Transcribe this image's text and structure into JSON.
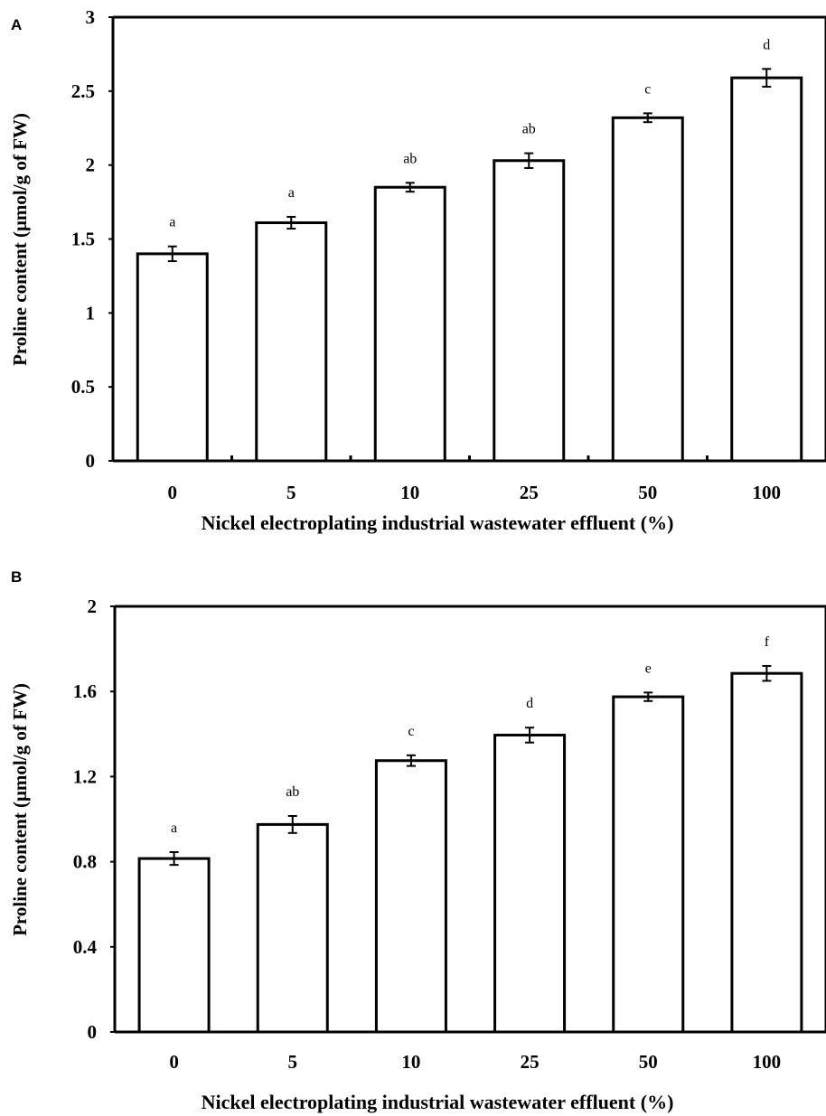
{
  "chart_data": [
    {
      "panel": "A",
      "type": "bar",
      "categories": [
        "0",
        "5",
        "10",
        "25",
        "50",
        "100"
      ],
      "values": [
        1.4,
        1.61,
        1.85,
        2.03,
        2.32,
        2.59
      ],
      "errors": [
        0.05,
        0.04,
        0.03,
        0.05,
        0.03,
        0.06
      ],
      "significance": [
        "a",
        "a",
        "ab",
        "ab",
        "c",
        "d"
      ],
      "xlabel": "Nickel electroplating industrial wastewater effluent (%)",
      "ylabel": "Proline content (μmol/g of FW)",
      "ylim": [
        0,
        3
      ],
      "yticks": [
        "0",
        "0.5",
        "1",
        "1.5",
        "2",
        "2.5",
        "3"
      ],
      "grid": false
    },
    {
      "panel": "B",
      "type": "bar",
      "categories": [
        "0",
        "5",
        "10",
        "25",
        "50",
        "100"
      ],
      "values": [
        0.815,
        0.975,
        1.275,
        1.395,
        1.575,
        1.685
      ],
      "errors": [
        0.03,
        0.04,
        0.025,
        0.035,
        0.02,
        0.035
      ],
      "significance": [
        "a",
        "ab",
        "c",
        "d",
        "e",
        "f"
      ],
      "xlabel": "Nickel electroplating industrial wastewater effluent (%)",
      "ylabel": "Proline content (μmol/g of FW)",
      "ylim": [
        0,
        2
      ],
      "yticks": [
        "0",
        "0.4",
        "0.8",
        "1.2",
        "1.6",
        "2"
      ],
      "grid": false
    }
  ]
}
